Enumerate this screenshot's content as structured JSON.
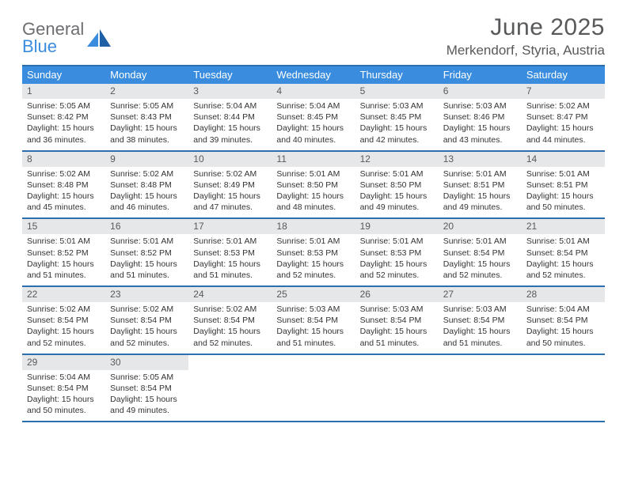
{
  "brand": {
    "word1": "General",
    "word2": "Blue",
    "text_color": "#6d6e71",
    "accent_color": "#3a8dde"
  },
  "title": "June 2025",
  "location": "Merkendorf, Styria, Austria",
  "colors": {
    "header_bg": "#3a8dde",
    "header_text": "#ffffff",
    "rule": "#2d6fae",
    "date_bar_bg": "#e6e7e8",
    "text": "#333333",
    "title_text": "#58595b"
  },
  "dayNames": [
    "Sunday",
    "Monday",
    "Tuesday",
    "Wednesday",
    "Thursday",
    "Friday",
    "Saturday"
  ],
  "days": [
    {
      "n": 1,
      "sr": "5:05 AM",
      "ss": "8:42 PM",
      "dl": "15 hours and 36 minutes."
    },
    {
      "n": 2,
      "sr": "5:05 AM",
      "ss": "8:43 PM",
      "dl": "15 hours and 38 minutes."
    },
    {
      "n": 3,
      "sr": "5:04 AM",
      "ss": "8:44 PM",
      "dl": "15 hours and 39 minutes."
    },
    {
      "n": 4,
      "sr": "5:04 AM",
      "ss": "8:45 PM",
      "dl": "15 hours and 40 minutes."
    },
    {
      "n": 5,
      "sr": "5:03 AM",
      "ss": "8:45 PM",
      "dl": "15 hours and 42 minutes."
    },
    {
      "n": 6,
      "sr": "5:03 AM",
      "ss": "8:46 PM",
      "dl": "15 hours and 43 minutes."
    },
    {
      "n": 7,
      "sr": "5:02 AM",
      "ss": "8:47 PM",
      "dl": "15 hours and 44 minutes."
    },
    {
      "n": 8,
      "sr": "5:02 AM",
      "ss": "8:48 PM",
      "dl": "15 hours and 45 minutes."
    },
    {
      "n": 9,
      "sr": "5:02 AM",
      "ss": "8:48 PM",
      "dl": "15 hours and 46 minutes."
    },
    {
      "n": 10,
      "sr": "5:02 AM",
      "ss": "8:49 PM",
      "dl": "15 hours and 47 minutes."
    },
    {
      "n": 11,
      "sr": "5:01 AM",
      "ss": "8:50 PM",
      "dl": "15 hours and 48 minutes."
    },
    {
      "n": 12,
      "sr": "5:01 AM",
      "ss": "8:50 PM",
      "dl": "15 hours and 49 minutes."
    },
    {
      "n": 13,
      "sr": "5:01 AM",
      "ss": "8:51 PM",
      "dl": "15 hours and 49 minutes."
    },
    {
      "n": 14,
      "sr": "5:01 AM",
      "ss": "8:51 PM",
      "dl": "15 hours and 50 minutes."
    },
    {
      "n": 15,
      "sr": "5:01 AM",
      "ss": "8:52 PM",
      "dl": "15 hours and 51 minutes."
    },
    {
      "n": 16,
      "sr": "5:01 AM",
      "ss": "8:52 PM",
      "dl": "15 hours and 51 minutes."
    },
    {
      "n": 17,
      "sr": "5:01 AM",
      "ss": "8:53 PM",
      "dl": "15 hours and 51 minutes."
    },
    {
      "n": 18,
      "sr": "5:01 AM",
      "ss": "8:53 PM",
      "dl": "15 hours and 52 minutes."
    },
    {
      "n": 19,
      "sr": "5:01 AM",
      "ss": "8:53 PM",
      "dl": "15 hours and 52 minutes."
    },
    {
      "n": 20,
      "sr": "5:01 AM",
      "ss": "8:54 PM",
      "dl": "15 hours and 52 minutes."
    },
    {
      "n": 21,
      "sr": "5:01 AM",
      "ss": "8:54 PM",
      "dl": "15 hours and 52 minutes."
    },
    {
      "n": 22,
      "sr": "5:02 AM",
      "ss": "8:54 PM",
      "dl": "15 hours and 52 minutes."
    },
    {
      "n": 23,
      "sr": "5:02 AM",
      "ss": "8:54 PM",
      "dl": "15 hours and 52 minutes."
    },
    {
      "n": 24,
      "sr": "5:02 AM",
      "ss": "8:54 PM",
      "dl": "15 hours and 52 minutes."
    },
    {
      "n": 25,
      "sr": "5:03 AM",
      "ss": "8:54 PM",
      "dl": "15 hours and 51 minutes."
    },
    {
      "n": 26,
      "sr": "5:03 AM",
      "ss": "8:54 PM",
      "dl": "15 hours and 51 minutes."
    },
    {
      "n": 27,
      "sr": "5:03 AM",
      "ss": "8:54 PM",
      "dl": "15 hours and 51 minutes."
    },
    {
      "n": 28,
      "sr": "5:04 AM",
      "ss": "8:54 PM",
      "dl": "15 hours and 50 minutes."
    },
    {
      "n": 29,
      "sr": "5:04 AM",
      "ss": "8:54 PM",
      "dl": "15 hours and 50 minutes."
    },
    {
      "n": 30,
      "sr": "5:05 AM",
      "ss": "8:54 PM",
      "dl": "15 hours and 49 minutes."
    }
  ],
  "labels": {
    "sunrise": "Sunrise:",
    "sunset": "Sunset:",
    "daylight": "Daylight:"
  }
}
